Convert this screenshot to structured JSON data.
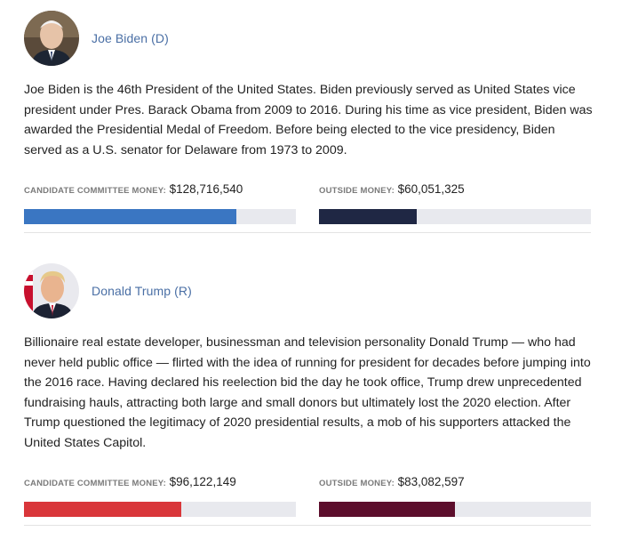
{
  "candidates": [
    {
      "name": "Joe Biden (D)",
      "bio": "Joe Biden is the 46th President of the United States. Biden previously served as United States vice president under Pres. Barack Obama from 2009 to 2016. During his time as vice president, Biden was awarded the Presidential Medal of Freedom. Before being elected to the vice presidency, Biden served as a U.S. senator for Delaware from 1973 to 2009.",
      "committee_label": "CANDIDATE COMMITTEE MONEY:",
      "committee_amount": "$128,716,540",
      "committee_fraction": 0.78,
      "committee_color": "#3a76c2",
      "outside_label": "OUTSIDE MONEY:",
      "outside_amount": "$60,051,325",
      "outside_fraction": 0.36,
      "outside_color": "#1f2744"
    },
    {
      "name": "Donald Trump (R)",
      "bio": "Billionaire real estate developer, businessman and television personality Donald Trump — who had never held public office — flirted with the idea of running for president for decades before jumping into the 2016 race. Having declared his reelection bid the day he took office, Trump drew unprecedented fundraising hauls, attracting both large and small donors but ultimately lost the 2020 election. After Trump questioned the legitimacy of 2020 presidential results, a mob of his supporters attacked the United States Capitol.",
      "committee_label": "CANDIDATE COMMITTEE MONEY:",
      "committee_amount": "$96,122,149",
      "committee_fraction": 0.58,
      "committee_color": "#d9363a",
      "outside_label": "OUTSIDE MONEY:",
      "outside_amount": "$83,082,597",
      "outside_fraction": 0.5,
      "outside_color": "#5c0e2c"
    }
  ]
}
